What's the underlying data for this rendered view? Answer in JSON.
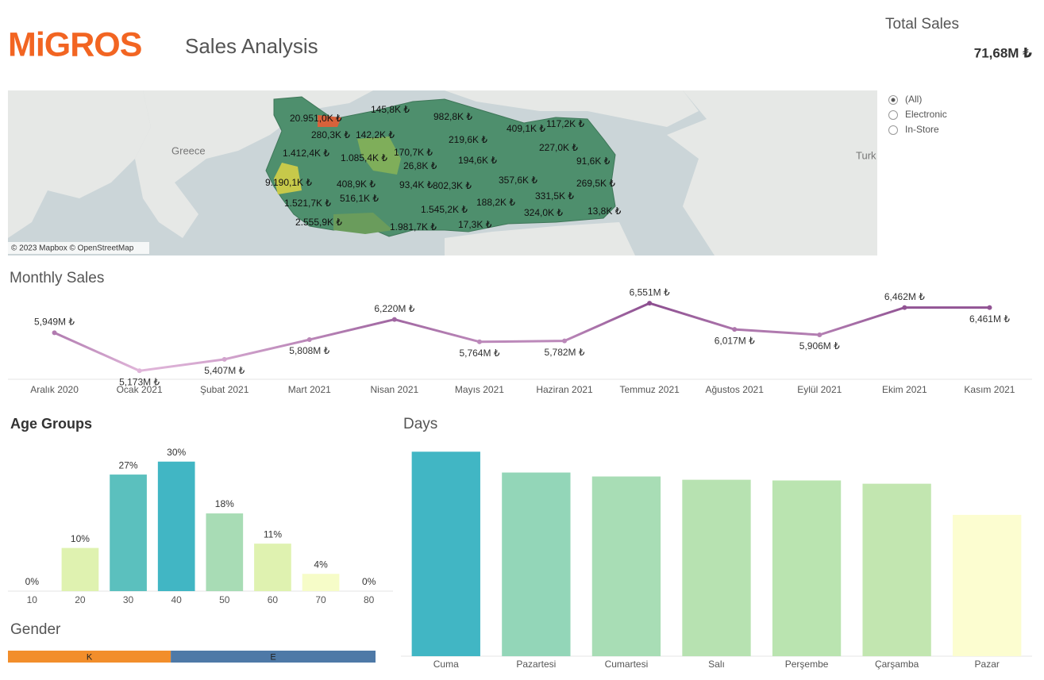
{
  "header": {
    "logo": "MiGROS",
    "title": "Sales Analysis",
    "total_label": "Total Sales",
    "total_value": "71,68M ₺"
  },
  "filter": {
    "options": [
      "(All)",
      "Electronic",
      "In-Store"
    ],
    "selected": 0
  },
  "map": {
    "credit": "© 2023 Mapbox © OpenStreetMap",
    "places": [
      "Greece",
      "Turk"
    ],
    "labels": [
      "20.951,0K ₺",
      "145,8K ₺",
      "982,8K ₺",
      "409,1K ₺",
      "117,2K ₺",
      "280,3K ₺",
      "142,2K ₺",
      "219,6K ₺",
      "227,0K ₺",
      "1.412,4K ₺",
      "170,7K ₺",
      "1.085,4K ₺",
      "26,8K ₺",
      "194,6K ₺",
      "91,6K ₺",
      "9.190,1K ₺",
      "408,9K ₺",
      "93,4K ₺",
      "802,3K ₺",
      "357,6K ₺",
      "269,5K ₺",
      "516,1K ₺",
      "331,5K ₺",
      "1.521,7K ₺",
      "188,2K ₺",
      "1.545,2K ₺",
      "324,0K ₺",
      "13,8K ₺",
      "2.555,9K ₺",
      "1.981,7K ₺",
      "17,3K ₺"
    ]
  },
  "chart_data": [
    {
      "type": "line",
      "title": "Monthly Sales",
      "categories": [
        "Aralık 2020",
        "Ocak 2021",
        "Şubat 2021",
        "Mart 2021",
        "Nisan 2021",
        "Mayıs 2021",
        "Haziran 2021",
        "Temmuz 2021",
        "Ağustos 2021",
        "Eylül 2021",
        "Ekim 2021",
        "Kasım 2021"
      ],
      "values": [
        5.949,
        5.173,
        5.407,
        5.808,
        6.22,
        5.764,
        5.782,
        6.551,
        6.017,
        5.906,
        6.462,
        6.461
      ],
      "value_labels": [
        "5,949M ₺",
        "5,173M ₺",
        "5,407M ₺",
        "5,808M ₺",
        "6,220M ₺",
        "5,764M ₺",
        "5,782M ₺",
        "6,551M ₺",
        "6,017M ₺",
        "5,906M ₺",
        "6,462M ₺",
        "6,461M ₺"
      ],
      "ylim": [
        5.0,
        6.65
      ],
      "color_scale": [
        "#ebc3e3",
        "#86468a"
      ]
    },
    {
      "type": "bar",
      "title": "Age Groups",
      "categories": [
        "10",
        "20",
        "30",
        "40",
        "50",
        "60",
        "70",
        "80"
      ],
      "values": [
        0,
        10,
        27,
        30,
        18,
        11,
        4,
        0
      ],
      "value_labels": [
        "0%",
        "10%",
        "27%",
        "30%",
        "18%",
        "11%",
        "4%",
        "0%"
      ],
      "colors": [
        "#f6fcc8",
        "#dff2b0",
        "#5bc0be",
        "#41b6c4",
        "#a8dcb5",
        "#dff2b0",
        "#f6fcc8",
        "#f6fcc8"
      ],
      "ylim": [
        0,
        34
      ]
    },
    {
      "type": "bar",
      "title": "Days",
      "categories": [
        "Cuma",
        "Pazartesi",
        "Cumartesi",
        "Salı",
        "Perşembe",
        "Çarşamba",
        "Pazar"
      ],
      "values": [
        11.88,
        10.67,
        10.44,
        10.25,
        10.21,
        10.02,
        8.21
      ],
      "colors": [
        "#41b6c4",
        "#93d6b8",
        "#a8ddb5",
        "#b7e2b1",
        "#bae4b0",
        "#c2e6b0",
        "#fcfdd0"
      ],
      "ylim": [
        0,
        12.4
      ]
    },
    {
      "type": "stacked-bar",
      "title": "Gender",
      "series": [
        {
          "name": "K",
          "color": "#f28e2b",
          "values": [
            44.3
          ]
        },
        {
          "name": "E",
          "color": "#4e79a7",
          "values": [
            55.7
          ]
        }
      ],
      "xlim": [
        0,
        100
      ]
    }
  ]
}
